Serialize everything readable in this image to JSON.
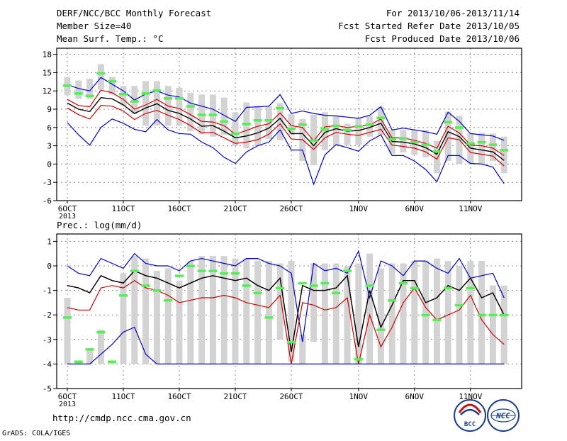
{
  "header": {
    "title": "DERF/NCC/BCC Monthly Forecast",
    "member_size": "Member Size=40",
    "variable": "Mean Surf. Temp.: °C",
    "period": "For 2013/10/06-2013/11/14",
    "started": "Fcst Started Refer Date 2013/10/05",
    "produced": "Fcst Produced Date 2013/10/06"
  },
  "footer": {
    "url": "http://cmdp.ncc.cma.gov.cn",
    "grads": "GrADS: COLA/IGES",
    "logo1_text": "BCC",
    "logo2_text": "NCC"
  },
  "colors": {
    "box": "#d3d3d3",
    "median": "#55ee55",
    "mean": "#000000",
    "spread": "#cc0000",
    "extreme": "#0000cc"
  },
  "chart_data": [
    {
      "type": "line",
      "title": "Mean Surf. Temp.: °C",
      "x_tick_labels": [
        "6OCT\n2013",
        "11OCT",
        "16OCT",
        "21OCT",
        "26OCT",
        "1NOV",
        "6NOV",
        "11NOV"
      ],
      "x_tick_index": [
        0,
        5,
        10,
        15,
        20,
        26,
        31,
        36
      ],
      "ylim": [
        -6,
        19
      ],
      "yticks": [
        -6,
        -3,
        0,
        3,
        6,
        9,
        12,
        15,
        18
      ],
      "grid": true,
      "box_low": [
        11.3,
        10.7,
        10.7,
        12.2,
        11.4,
        9.6,
        8.2,
        6.3,
        6.3,
        6.3,
        6.3,
        5.4,
        4.9,
        4.5,
        4.8,
        3.0,
        2.6,
        3.0,
        4.1,
        3.9,
        4.7,
        0.5,
        -0.2,
        2.3,
        3.0,
        3.1,
        3.1,
        4.5,
        4.8,
        1.7,
        1.9,
        1.5,
        1.1,
        -1.5,
        0.5,
        0.0,
        0.0,
        0.0,
        0.5,
        -1.5
      ],
      "box_high": [
        14.3,
        13.7,
        14.0,
        16.4,
        14.3,
        12.8,
        12.8,
        13.6,
        13.6,
        12.8,
        12.5,
        11.7,
        11.4,
        11.4,
        10.9,
        8.5,
        10.1,
        9.4,
        9.5,
        10.0,
        8.2,
        7.4,
        8.1,
        8.5,
        7.9,
        6.6,
        7.6,
        7.9,
        9.4,
        5.6,
        5.6,
        5.6,
        5.6,
        3.8,
        8.6,
        7.9,
        5.0,
        5.1,
        5.0,
        4.5
      ],
      "median": [
        12.9,
        11.6,
        11.2,
        14.9,
        13.6,
        11.5,
        10.3,
        11.6,
        12.1,
        10.8,
        10.8,
        9.5,
        8.1,
        8.1,
        7.0,
        5.0,
        6.6,
        7.2,
        7.2,
        9.2,
        5.8,
        6.5,
        3.9,
        5.7,
        6.3,
        5.6,
        6.2,
        6.5,
        7.6,
        4.1,
        4.2,
        3.6,
        3.2,
        2.1,
        6.9,
        6.0,
        3.4,
        3.6,
        3.2,
        2.3
      ],
      "series": [
        {
          "role": "max",
          "values": [
            13.0,
            12.4,
            12.0,
            14.2,
            13.1,
            12.0,
            10.5,
            11.5,
            12.0,
            11.3,
            11.0,
            10.0,
            9.5,
            9.0,
            8.0,
            7.0,
            9.3,
            9.4,
            9.5,
            11.4,
            8.3,
            8.7,
            8.3,
            8.0,
            7.9,
            7.7,
            7.5,
            8.0,
            9.4,
            5.6,
            5.9,
            5.6,
            5.3,
            4.9,
            8.5,
            7.0,
            5.0,
            4.8,
            4.6,
            3.9
          ]
        },
        {
          "role": "upper",
          "values": [
            10.6,
            9.6,
            9.4,
            12.1,
            11.7,
            10.6,
            9.0,
            9.7,
            10.6,
            9.5,
            9.1,
            8.1,
            7.0,
            6.9,
            6.3,
            4.9,
            5.5,
            6.2,
            6.6,
            8.4,
            6.3,
            6.0,
            3.8,
            6.1,
            6.3,
            6.0,
            6.2,
            6.4,
            7.4,
            4.3,
            4.3,
            3.9,
            3.4,
            2.6,
            6.2,
            5.1,
            3.1,
            3.0,
            2.6,
            1.4
          ]
        },
        {
          "role": "mean",
          "values": [
            10.0,
            9.0,
            8.6,
            10.9,
            10.7,
            9.7,
            8.3,
            9.2,
            9.9,
            8.8,
            8.3,
            7.4,
            6.2,
            6.3,
            5.4,
            4.3,
            4.6,
            5.1,
            5.9,
            7.5,
            5.0,
            5.0,
            3.0,
            5.2,
            5.8,
            5.4,
            5.5,
            6.0,
            6.7,
            3.7,
            3.6,
            3.3,
            2.7,
            1.6,
            5.3,
            4.5,
            2.6,
            2.3,
            2.0,
            0.6
          ]
        },
        {
          "role": "lower",
          "values": [
            9.2,
            8.1,
            7.4,
            9.6,
            9.5,
            8.7,
            7.3,
            8.3,
            8.8,
            8.0,
            7.3,
            6.3,
            5.1,
            5.2,
            4.3,
            3.4,
            3.6,
            4.0,
            4.9,
            6.6,
            4.1,
            4.0,
            2.4,
            4.3,
            5.2,
            4.9,
            4.7,
            5.2,
            5.7,
            3.1,
            2.9,
            2.6,
            2.0,
            0.8,
            4.3,
            4.0,
            1.9,
            1.6,
            1.3,
            -0.3
          ]
        },
        {
          "role": "min",
          "values": [
            6.8,
            4.8,
            3.1,
            6.0,
            7.4,
            6.7,
            5.7,
            5.3,
            7.3,
            5.6,
            5.0,
            4.9,
            3.6,
            2.7,
            1.1,
            0.1,
            2.0,
            3.0,
            3.6,
            5.6,
            2.3,
            2.3,
            -3.3,
            1.5,
            3.2,
            2.7,
            2.1,
            3.8,
            4.8,
            1.4,
            1.4,
            0.5,
            -0.9,
            -2.9,
            1.4,
            1.4,
            0.1,
            0.0,
            -0.5,
            -3.2
          ]
        }
      ]
    },
    {
      "type": "line",
      "title": "Prec.: log(mm/d)",
      "x_tick_labels": [
        "6OCT\n2013",
        "11OCT",
        "16OCT",
        "21OCT",
        "26OCT",
        "1NOV",
        "6NOV",
        "11NOV"
      ],
      "x_tick_index": [
        0,
        5,
        10,
        15,
        20,
        26,
        31,
        36
      ],
      "ylim": [
        -5,
        1.3
      ],
      "yticks": [
        -5,
        -4,
        -3,
        -2,
        -1,
        0,
        1
      ],
      "grid": true,
      "box_low": [
        -4,
        -4,
        -4,
        -4,
        -4,
        -4,
        -4,
        -4,
        -4,
        -4,
        -4,
        -4,
        -4,
        -4,
        -4,
        -4,
        -4,
        -4,
        -4,
        -3.0,
        -3.9,
        -4,
        -3.1,
        -4,
        -4,
        -4,
        -4,
        -4,
        -4,
        -4,
        -4,
        -4,
        -4,
        -4,
        -4,
        -4,
        -4,
        -4,
        -4,
        -4
      ],
      "box_high": [
        -1.3,
        -3.9,
        -3.4,
        -2.6,
        -3.9,
        -0.3,
        0.4,
        0.3,
        -0.2,
        -0.1,
        -0.6,
        0.2,
        0.4,
        0.4,
        0.4,
        0.3,
        0.3,
        0.2,
        0.2,
        0.1,
        0.2,
        -2.8,
        0.1,
        0.1,
        0.1,
        0.0,
        0.1,
        0.5,
        -0.1,
        0.1,
        0.1,
        0.2,
        0.2,
        0.3,
        0.2,
        0.0,
        0.2,
        0.2,
        -0.8,
        -0.8
      ],
      "median": [
        -2.1,
        -3.9,
        -3.4,
        -2.7,
        -3.9,
        -1.2,
        -0.2,
        -0.8,
        -1.0,
        -1.4,
        -0.4,
        0.0,
        -0.2,
        -0.2,
        -0.3,
        -0.3,
        -0.8,
        -1.1,
        -2.1,
        -0.9,
        -3.1,
        -0.7,
        -0.8,
        -0.7,
        -1.1,
        -0.2,
        -3.8,
        -0.8,
        -2.6,
        -1.4,
        -0.7,
        -0.9,
        -2.0,
        -2.2,
        -0.9,
        -1.6,
        -0.9,
        -2.0,
        -2.0,
        -2.0
      ],
      "series": [
        {
          "role": "max",
          "values": [
            0.0,
            -0.3,
            -0.4,
            0.3,
            0.1,
            -0.1,
            0.5,
            0.1,
            0.0,
            0.0,
            -0.2,
            0.2,
            0.3,
            0.2,
            0.1,
            0.0,
            0.3,
            0.3,
            0.1,
            0.0,
            -0.3,
            -3.1,
            0.1,
            -0.2,
            -0.1,
            -0.3,
            0.6,
            -1.3,
            0.2,
            0.0,
            -0.4,
            0.2,
            0.2,
            -0.1,
            -0.3,
            0.3,
            -0.5,
            -0.4,
            -0.3,
            -1.3
          ]
        },
        {
          "role": "upper",
          "values": [
            -0.8,
            -0.9,
            -1.1,
            -0.4,
            -0.6,
            -0.7,
            -0.2,
            -0.4,
            -0.5,
            -0.7,
            -0.9,
            -0.7,
            -0.5,
            -0.4,
            -0.5,
            -0.6,
            -0.5,
            -0.8,
            -1.0,
            -0.5,
            -3.5,
            -0.8,
            -1.0,
            -1.0,
            -0.9,
            -0.4,
            -3.3,
            -1.0,
            -2.5,
            -1.6,
            -0.6,
            -0.6,
            -1.5,
            -1.3,
            -0.8,
            -1.0,
            -0.5,
            -1.3,
            -1.1,
            -2.0
          ]
        },
        {
          "role": "mean",
          "values": [
            -0.8,
            -0.9,
            -1.1,
            -0.4,
            -0.6,
            -0.7,
            -0.2,
            -0.4,
            -0.5,
            -0.7,
            -0.9,
            -0.7,
            -0.5,
            -0.4,
            -0.5,
            -0.6,
            -0.5,
            -0.8,
            -1.0,
            -0.5,
            -3.5,
            -0.8,
            -1.0,
            -1.0,
            -0.9,
            -0.4,
            -3.3,
            -1.0,
            -2.5,
            -1.6,
            -0.6,
            -0.6,
            -1.5,
            -1.3,
            -0.8,
            -1.0,
            -0.5,
            -1.3,
            -1.1,
            -2.0
          ]
        },
        {
          "role": "lower",
          "values": [
            -1.7,
            -1.8,
            -1.8,
            -0.9,
            -0.8,
            -0.9,
            -0.6,
            -0.9,
            -1.0,
            -1.2,
            -1.5,
            -1.4,
            -1.3,
            -1.3,
            -1.2,
            -1.3,
            -1.5,
            -1.6,
            -1.7,
            -1.2,
            -4.0,
            -1.5,
            -1.6,
            -1.8,
            -1.7,
            -1.3,
            -4.0,
            -2.0,
            -3.3,
            -2.5,
            -1.5,
            -0.9,
            -1.7,
            -2.2,
            -2.0,
            -1.8,
            -1.2,
            -2.2,
            -2.8,
            -3.2
          ]
        },
        {
          "role": "min",
          "values": [
            -4.0,
            -4.0,
            -4.0,
            -3.6,
            -3.2,
            -2.7,
            -2.5,
            -3.6,
            -4.0,
            -4.0,
            -4.0,
            -4.0,
            -4.0,
            -4.0,
            -4.0,
            -4.0,
            -4.0,
            -4.0,
            -4.0,
            -4.0,
            -4.0,
            -4.0,
            -4.0,
            -4.0,
            -4.0,
            -4.0,
            -4.0,
            -4.0,
            -4.0,
            -4.0,
            -4.0,
            -4.0,
            -4.0,
            -4.0,
            -4.0,
            -4.0,
            -4.0,
            -4.0,
            -4.0,
            -4.0
          ]
        }
      ]
    }
  ]
}
